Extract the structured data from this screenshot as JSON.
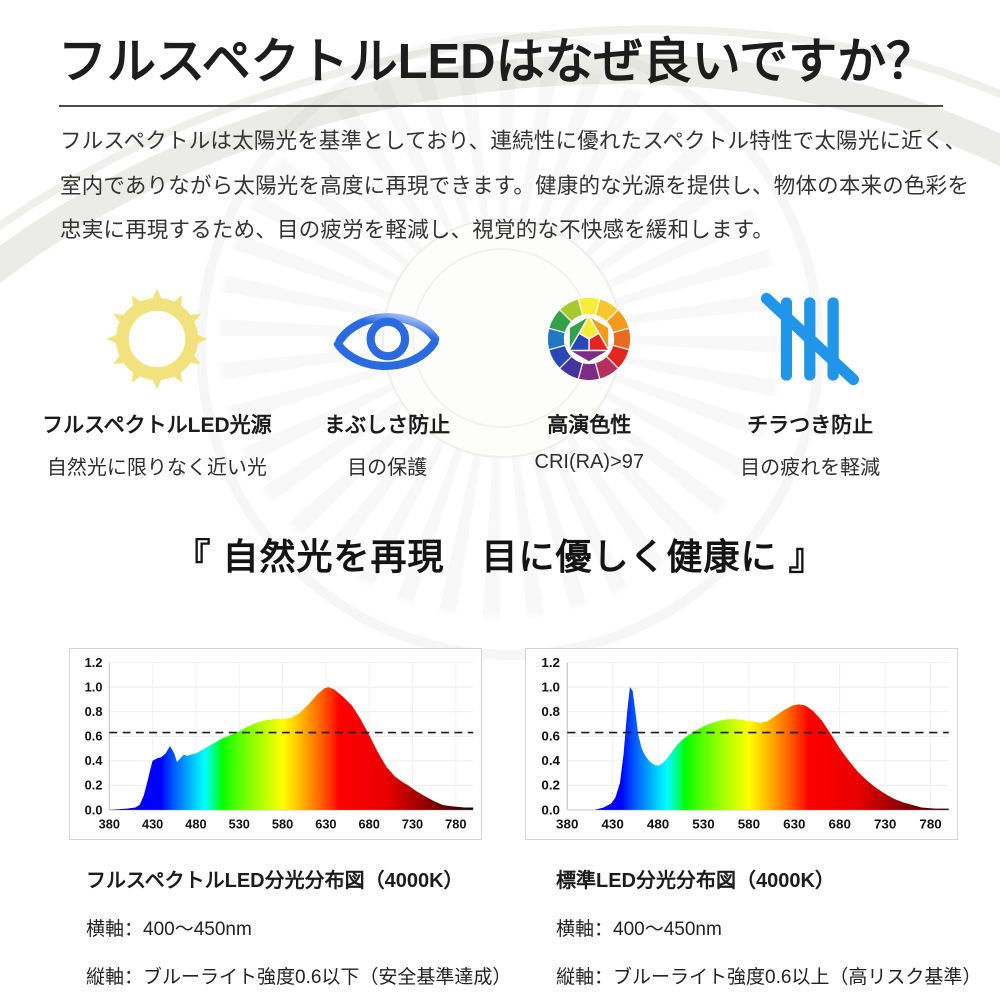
{
  "page": {
    "title": "フルスペクトルLEDはなぜ良いですか？",
    "intro_lines": [
      "フルスペクトルは太陽光を基準としており、連続性に優れたスペクトル特性で太陽光に近く、",
      "室内でありながら太陽光を高度に再現できます。健康的な光源を提供し、物体の本来の色彩を",
      "忠実に再現するため、目の疲労を軽減し、視覚的な不快感を緩和します。"
    ],
    "quote": "『 自然光を再現　目に優しく健康に 』"
  },
  "features": [
    {
      "icon": "sun-icon",
      "label": "フルスペクトルLED光源",
      "sublabel": "自然光に限りなく近い光"
    },
    {
      "icon": "eye-icon",
      "label": "まぶしさ防止",
      "sublabel": "目の保護"
    },
    {
      "icon": "color-wheel-icon",
      "label": "高演色性",
      "sublabel": "CRI(RA)>97"
    },
    {
      "icon": "flicker-icon",
      "label": "チラつき防止",
      "sublabel": "目の疲れを軽減"
    }
  ],
  "colors": {
    "title_text": "#1d1d1d",
    "body_text": "#333333",
    "divider": "#4a4a4a",
    "sun_yellow": "#f1e27d",
    "eye_blue": "#2a6be0",
    "flicker_blue": "#2196e8",
    "threshold_dash": "#1c1c1c",
    "panel_border": "#d2d2d2"
  },
  "chart_data": [
    {
      "type": "area",
      "title": "フルスペクトルLED分光分布図（4000K）",
      "xlim": [
        380,
        800
      ],
      "ylim": [
        0,
        1.2
      ],
      "x_ticks": [
        380,
        430,
        480,
        530,
        580,
        630,
        680,
        730,
        780
      ],
      "y_ticks": [
        0.0,
        0.2,
        0.4,
        0.6,
        0.8,
        1.0,
        1.2
      ],
      "grid": true,
      "threshold": 0.63,
      "fill": "spectral-gradient",
      "points": [
        [
          380,
          0
        ],
        [
          400,
          0.01
        ],
        [
          410,
          0.02
        ],
        [
          415,
          0.04
        ],
        [
          420,
          0.12
        ],
        [
          425,
          0.26
        ],
        [
          428,
          0.35
        ],
        [
          430,
          0.4
        ],
        [
          435,
          0.42
        ],
        [
          440,
          0.43
        ],
        [
          445,
          0.46
        ],
        [
          450,
          0.52
        ],
        [
          455,
          0.46
        ],
        [
          458,
          0.39
        ],
        [
          462,
          0.42
        ],
        [
          466,
          0.45
        ],
        [
          470,
          0.44
        ],
        [
          474,
          0.45
        ],
        [
          480,
          0.46
        ],
        [
          490,
          0.5
        ],
        [
          500,
          0.54
        ],
        [
          510,
          0.58
        ],
        [
          520,
          0.61
        ],
        [
          530,
          0.64
        ],
        [
          540,
          0.68
        ],
        [
          550,
          0.71
        ],
        [
          560,
          0.73
        ],
        [
          570,
          0.74
        ],
        [
          580,
          0.74
        ],
        [
          590,
          0.75
        ],
        [
          600,
          0.79
        ],
        [
          610,
          0.86
        ],
        [
          620,
          0.94
        ],
        [
          628,
          0.99
        ],
        [
          633,
          1.0
        ],
        [
          640,
          0.98
        ],
        [
          650,
          0.92
        ],
        [
          660,
          0.85
        ],
        [
          670,
          0.74
        ],
        [
          680,
          0.61
        ],
        [
          690,
          0.47
        ],
        [
          700,
          0.35
        ],
        [
          710,
          0.27
        ],
        [
          718,
          0.23
        ],
        [
          725,
          0.2
        ],
        [
          735,
          0.15
        ],
        [
          745,
          0.11
        ],
        [
          755,
          0.07
        ],
        [
          765,
          0.04
        ],
        [
          775,
          0.03
        ],
        [
          790,
          0.02
        ],
        [
          800,
          0.02
        ]
      ],
      "caption": {
        "title": "フルスペクトルLED分光分布図（4000K）",
        "axis_x": "横軸：400～450nm",
        "axis_y": "縦軸：ブルーライト強度0.6以下（安全基準達成）"
      }
    },
    {
      "type": "area",
      "title": "標準LED分光分布図（4000K）",
      "xlim": [
        380,
        800
      ],
      "ylim": [
        0,
        1.2
      ],
      "x_ticks": [
        380,
        430,
        480,
        530,
        580,
        630,
        680,
        730,
        780
      ],
      "y_ticks": [
        0.0,
        0.2,
        0.4,
        0.6,
        0.8,
        1.0,
        1.2
      ],
      "grid": true,
      "threshold": 0.63,
      "fill": "spectral-gradient",
      "points": [
        [
          380,
          0
        ],
        [
          410,
          0
        ],
        [
          420,
          0.02
        ],
        [
          428,
          0.05
        ],
        [
          433,
          0.1
        ],
        [
          438,
          0.22
        ],
        [
          442,
          0.45
        ],
        [
          446,
          0.8
        ],
        [
          449,
          1.0
        ],
        [
          452,
          0.97
        ],
        [
          455,
          0.8
        ],
        [
          458,
          0.62
        ],
        [
          462,
          0.5
        ],
        [
          466,
          0.44
        ],
        [
          470,
          0.4
        ],
        [
          475,
          0.37
        ],
        [
          480,
          0.36
        ],
        [
          485,
          0.38
        ],
        [
          490,
          0.42
        ],
        [
          495,
          0.47
        ],
        [
          500,
          0.52
        ],
        [
          505,
          0.56
        ],
        [
          510,
          0.59
        ],
        [
          520,
          0.64
        ],
        [
          530,
          0.68
        ],
        [
          540,
          0.71
        ],
        [
          550,
          0.73
        ],
        [
          558,
          0.74
        ],
        [
          565,
          0.74
        ],
        [
          575,
          0.73
        ],
        [
          585,
          0.72
        ],
        [
          592,
          0.71
        ],
        [
          600,
          0.72
        ],
        [
          610,
          0.77
        ],
        [
          618,
          0.81
        ],
        [
          628,
          0.85
        ],
        [
          635,
          0.86
        ],
        [
          642,
          0.85
        ],
        [
          650,
          0.81
        ],
        [
          660,
          0.73
        ],
        [
          670,
          0.62
        ],
        [
          680,
          0.5
        ],
        [
          690,
          0.4
        ],
        [
          700,
          0.31
        ],
        [
          710,
          0.24
        ],
        [
          720,
          0.18
        ],
        [
          730,
          0.13
        ],
        [
          740,
          0.09
        ],
        [
          750,
          0.06
        ],
        [
          760,
          0.04
        ],
        [
          770,
          0.02
        ],
        [
          785,
          0.01
        ],
        [
          800,
          0.01
        ]
      ],
      "caption": {
        "title": "標準LED分光分布図（4000K）",
        "axis_x": "横軸：400～450nm",
        "axis_y": "縦軸：ブルーライト強度0.6以上（高リスク基準）"
      }
    }
  ]
}
